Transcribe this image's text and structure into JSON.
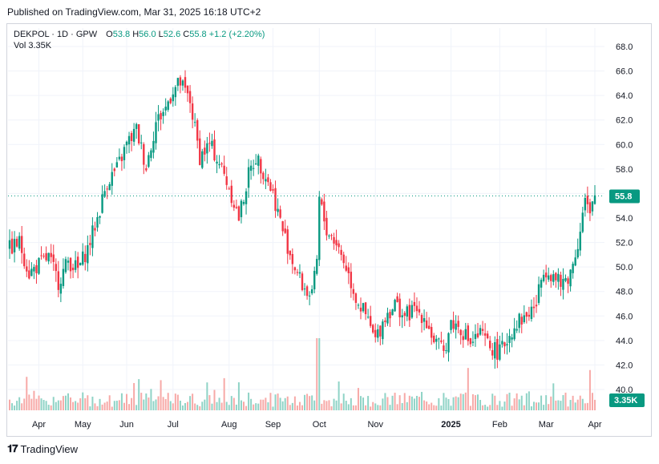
{
  "published": "Published on TradingView.com, Mar 31, 2025 16:18 UTC+2",
  "legend": {
    "symbol": "DEKPOL · 1D · GPW",
    "o_label": "O",
    "o_value": "53.8",
    "h_label": "H",
    "h_value": "56.0",
    "l_label": "L",
    "l_value": "52.6",
    "c_label": "C",
    "c_value": "55.8",
    "change": "+1.2 (+2.20%)",
    "vol_label": "Vol",
    "vol_value": "3.35K"
  },
  "brand": "TradingView",
  "colors": {
    "up": "#089981",
    "down": "#f23645",
    "vol_up": "#8fd3c6",
    "vol_down": "#f7a9a7",
    "grid": "#f0f3fa",
    "axis_text": "#131722"
  },
  "chart_data": {
    "type": "candlestick",
    "symbol": "DEKPOL",
    "interval": "1D",
    "exchange": "GPW",
    "last_price": 55.8,
    "last_price_label": "55.8",
    "last_volume_label": "3.35K",
    "ylim": [
      39.0,
      69.0
    ],
    "y_ticks": [
      40.0,
      42.0,
      44.0,
      46.0,
      48.0,
      50.0,
      52.0,
      54.0,
      56.0,
      58.0,
      60.0,
      62.0,
      64.0,
      66.0,
      68.0
    ],
    "y_tick_labels": [
      "40.0",
      "42.0",
      "44.0",
      "46.0",
      "48.0",
      "50.0",
      "52.0",
      "54.0",
      "56.0",
      "58.0",
      "60.0",
      "62.0",
      "64.0",
      "66.0",
      "68.0"
    ],
    "x_tick_labels": [
      "Apr",
      "May",
      "Jun",
      "Jul",
      "Aug",
      "Sep",
      "Oct",
      "Nov",
      "2025",
      "Feb",
      "Mar",
      "Apr"
    ],
    "x_tick_index": [
      12,
      30,
      48,
      67,
      90,
      108,
      127,
      150,
      181,
      201,
      220,
      240
    ],
    "bold_tick": "2025",
    "close_path": [
      [
        0,
        51.5
      ],
      [
        4,
        52.0
      ],
      [
        8,
        49.5
      ],
      [
        12,
        50.2
      ],
      [
        16,
        50.8
      ],
      [
        20,
        48.8
      ],
      [
        24,
        50.5
      ],
      [
        28,
        49.8
      ],
      [
        32,
        51.5
      ],
      [
        36,
        54.0
      ],
      [
        40,
        57.0
      ],
      [
        44,
        58.0
      ],
      [
        48,
        60.0
      ],
      [
        52,
        61.2
      ],
      [
        56,
        58.2
      ],
      [
        60,
        61.8
      ],
      [
        64,
        63.0
      ],
      [
        67,
        64.5
      ],
      [
        70,
        65.0
      ],
      [
        74,
        63.5
      ],
      [
        78,
        59.0
      ],
      [
        82,
        60.0
      ],
      [
        86,
        58.5
      ],
      [
        90,
        56.5
      ],
      [
        94,
        54.0
      ],
      [
        98,
        57.5
      ],
      [
        101,
        59.0
      ],
      [
        105,
        57.5
      ],
      [
        108,
        56.0
      ],
      [
        112,
        53.0
      ],
      [
        116,
        50.5
      ],
      [
        120,
        48.5
      ],
      [
        124,
        47.5
      ],
      [
        126,
        50.5
      ],
      [
        127,
        55.5
      ],
      [
        130,
        53.0
      ],
      [
        134,
        52.0
      ],
      [
        138,
        50.0
      ],
      [
        142,
        47.5
      ],
      [
        146,
        46.0
      ],
      [
        150,
        44.0
      ],
      [
        154,
        46.0
      ],
      [
        158,
        47.0
      ],
      [
        162,
        46.0
      ],
      [
        166,
        46.5
      ],
      [
        170,
        46.0
      ],
      [
        174,
        44.0
      ],
      [
        178,
        43.0
      ],
      [
        181,
        45.5
      ],
      [
        185,
        45.0
      ],
      [
        189,
        43.8
      ],
      [
        193,
        44.5
      ],
      [
        197,
        43.5
      ],
      [
        201,
        43.0
      ],
      [
        205,
        44.5
      ],
      [
        208,
        45.5
      ],
      [
        212,
        46.0
      ],
      [
        216,
        47.0
      ],
      [
        219,
        50.0
      ],
      [
        222,
        49.5
      ],
      [
        226,
        48.5
      ],
      [
        230,
        49.5
      ],
      [
        233,
        52.0
      ],
      [
        236,
        55.5
      ],
      [
        238,
        54.0
      ],
      [
        240,
        55.8
      ]
    ],
    "candles_count": 241,
    "volume_scale_max": 6.0
  }
}
